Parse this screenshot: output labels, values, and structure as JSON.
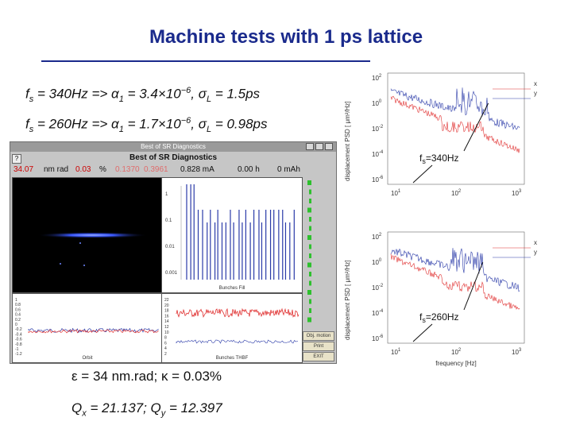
{
  "slide": {
    "title": "Machine tests with 1 ps lattice",
    "formula1": {
      "prefix": "f",
      "sub1": "s",
      "mid": " = 340Hz => α",
      "sub2": "1",
      "eq": " = 3.4×10",
      "exp": "−6",
      "rest": ", σ",
      "sub3": "L",
      "tail": " = 1.5ps"
    },
    "formula2": {
      "prefix": "f",
      "sub1": "s",
      "mid": " = 260Hz => α",
      "sub2": "1",
      "eq": " = 1.7×10",
      "exp": "−6",
      "rest": ", σ",
      "sub3": "L",
      "tail": " = 0.98ps"
    },
    "result_emittance": "ε = 34 nm.rad; κ = 0.03%",
    "result_tune": {
      "q1": "Q",
      "q1sub": "x",
      "q1val": " = 21.137; Q",
      "q2sub": "y",
      "q2val": " = 12.397"
    }
  },
  "sr_window": {
    "window_title": "Best of SR Diagnostics",
    "header": "Best of SR Diagnostics",
    "help": "?",
    "values": [
      {
        "text": "34.07",
        "color": "#cc0000"
      },
      {
        "text": "nm rad",
        "color": "#111111"
      },
      {
        "text": "0.03",
        "color": "#cc0000"
      },
      {
        "text": "%",
        "color": "#111111"
      },
      {
        "text": "0.1370",
        "color": "#e06c6c"
      },
      {
        "text": "0.3961",
        "color": "#e06c6c"
      },
      {
        "text": "0.828 mA",
        "color": "#111111"
      },
      {
        "text": "0.00 h",
        "color": "#111111"
      },
      {
        "text": "0 mAh",
        "color": "#111111"
      }
    ],
    "fill_panel": {
      "ticks": [
        "1",
        "0.1",
        "0.01",
        "0.001"
      ],
      "xlabel": "Bunches Fill"
    },
    "osc_panel": {
      "ticks": [
        "1",
        "0.8",
        "0.6",
        "0.4",
        "0.2",
        "0",
        "-0.2",
        "-0.4",
        "-0.6",
        "-0.8",
        "-1",
        "-1.2"
      ],
      "xlabel": "Orbit"
    },
    "spec_panel": {
      "ticks": [
        "22",
        "20",
        "18",
        "16",
        "14",
        "12",
        "10",
        "8",
        "6",
        "4",
        "2"
      ],
      "xlabel": "Bunches THBF"
    },
    "buttons": [
      "Obj. motion",
      "Print",
      "EXIT"
    ],
    "accent_beam": "#3a58ff"
  },
  "psd_top": {
    "ylabel": "displacement PSD [ μm²/Hz]",
    "yticks": [
      {
        "base": "10",
        "exp": "2"
      },
      {
        "base": "10",
        "exp": "0"
      },
      {
        "base": "10",
        "exp": "-2"
      },
      {
        "base": "10",
        "exp": "-4"
      },
      {
        "base": "10",
        "exp": "-6"
      }
    ],
    "xticks": [
      {
        "base": "10",
        "exp": "1"
      },
      {
        "base": "10",
        "exp": "2"
      },
      {
        "base": "10",
        "exp": "3"
      }
    ],
    "legend": [
      "x",
      "y"
    ],
    "annotation": {
      "prefix": "f",
      "sub": "s",
      "text": "=340Hz"
    }
  },
  "psd_bottom": {
    "ylabel": "displacement PSD [ μm²/Hz]",
    "yticks": [
      {
        "base": "10",
        "exp": "2"
      },
      {
        "base": "10",
        "exp": "0"
      },
      {
        "base": "10",
        "exp": "-2"
      },
      {
        "base": "10",
        "exp": "-4"
      },
      {
        "base": "10",
        "exp": "-6"
      }
    ],
    "xticks": [
      {
        "base": "10",
        "exp": "1"
      },
      {
        "base": "10",
        "exp": "2"
      },
      {
        "base": "10",
        "exp": "3"
      }
    ],
    "xlabel": "frequency [Hz]",
    "legend": [
      "x",
      "y"
    ],
    "annotation": {
      "prefix": "f",
      "sub": "s",
      "text": "=260Hz"
    }
  },
  "colors": {
    "title": "#1a2a8c",
    "series_x": "#e03030",
    "series_y": "#2a3aa8"
  }
}
